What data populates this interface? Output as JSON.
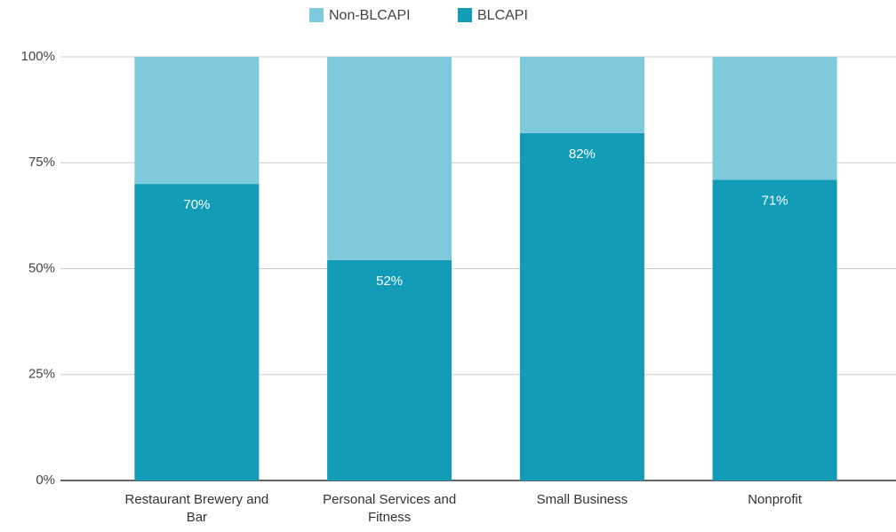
{
  "chart_data": {
    "type": "stacked_bar",
    "categories": [
      "Restaurant Brewery and Bar",
      "Personal Services and Fitness",
      "Small Business",
      "Nonprofit"
    ],
    "series": [
      {
        "name": "Non-BLCAPI",
        "color": "#7fc9dc",
        "values": [
          30,
          48,
          18,
          29
        ]
      },
      {
        "name": "BLCAPI",
        "color": "#129cb8",
        "values": [
          70,
          52,
          82,
          71
        ],
        "value_labels": [
          "70%",
          "52%",
          "82%",
          "71%"
        ]
      }
    ],
    "ylim": [
      0,
      100
    ],
    "yticks": [
      {
        "value": 0,
        "label": "0%"
      },
      {
        "value": 25,
        "label": "25%"
      },
      {
        "value": 50,
        "label": "50%"
      },
      {
        "value": 75,
        "label": "75%"
      },
      {
        "value": 100,
        "label": "100%"
      }
    ],
    "grid": true,
    "legend": "top"
  }
}
